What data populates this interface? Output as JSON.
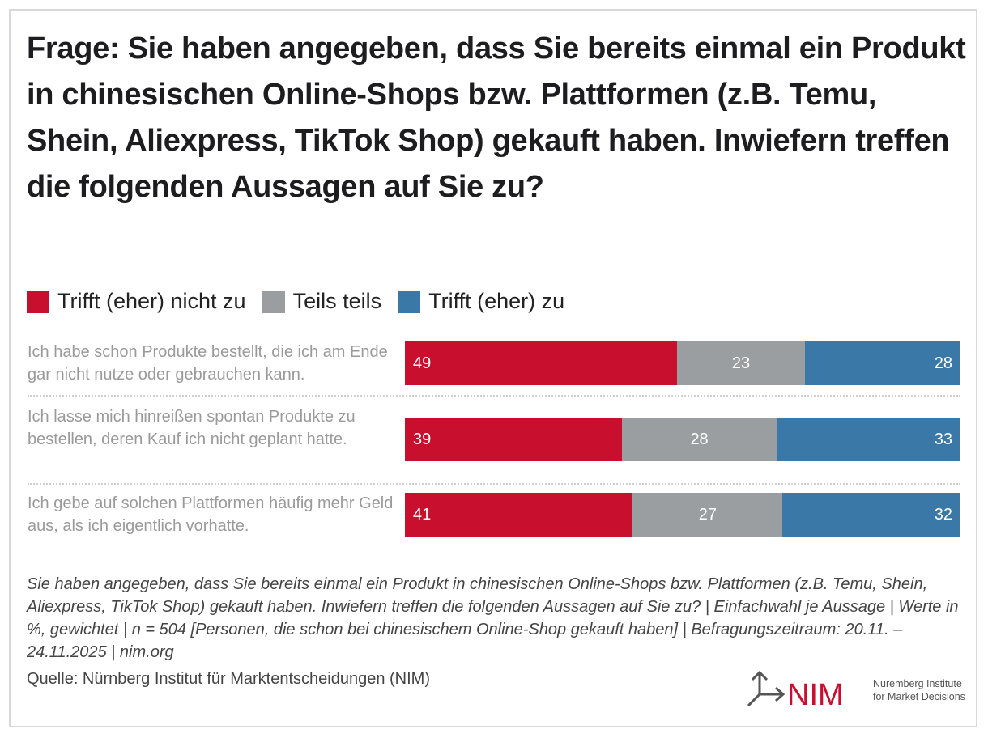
{
  "title": "Frage: Sie haben angegeben, dass Sie bereits einmal ein Produkt in chinesischen Online-Shops bzw. Plattformen (z.B. Temu, Shein, Aliexpress, TikTok Shop) gekauft haben. Inwiefern treffen die folgenden Aussagen auf Sie zu?",
  "chart_data": {
    "type": "bar",
    "orientation": "horizontal-stacked",
    "categories": [
      "Ich habe schon Produkte bestellt, die ich am Ende gar nicht nutze oder gebrauchen kann.",
      "Ich lasse mich hinreißen spontan Produkte zu bestellen, deren Kauf ich nicht geplant hatte.",
      "Ich gebe auf solchen Plattformen häufig mehr Geld aus, als ich eigentlich vorhatte."
    ],
    "series": [
      {
        "name": "Trifft (eher) nicht zu",
        "color": "#c8102e",
        "values": [
          49,
          39,
          41
        ]
      },
      {
        "name": "Teils teils",
        "color": "#9b9e a0",
        "values": [
          23,
          28,
          27
        ]
      },
      {
        "name": "Trifft (eher) zu",
        "color": "#3a78a8",
        "values": [
          28,
          33,
          32
        ]
      }
    ],
    "xlim": [
      0,
      100
    ],
    "legend": "top-left",
    "grid": false
  },
  "note": "Sie haben angegeben, dass Sie bereits einmal ein Produkt in chinesischen Online-Shops bzw. Plattformen (z.B. Temu, Shein, Aliexpress, TikTok Shop) gekauft haben. Inwiefern treffen die folgenden Aussagen auf Sie zu? | Einfachwahl je Aussage | Werte in %, gewichtet | n = 504 [Personen, die schon bei chinesischem Online-Shop gekauft haben] | Befragungszeitraum: 20.11. – 24.11.2025 | nim.org",
  "source": "Quelle: Nürnberg Institut für Marktentscheidungen (NIM)",
  "logo": {
    "mark": "NIM",
    "line1": "Nuremberg Institute",
    "line2": "for Market Decisions",
    "color": "#c8102e"
  }
}
